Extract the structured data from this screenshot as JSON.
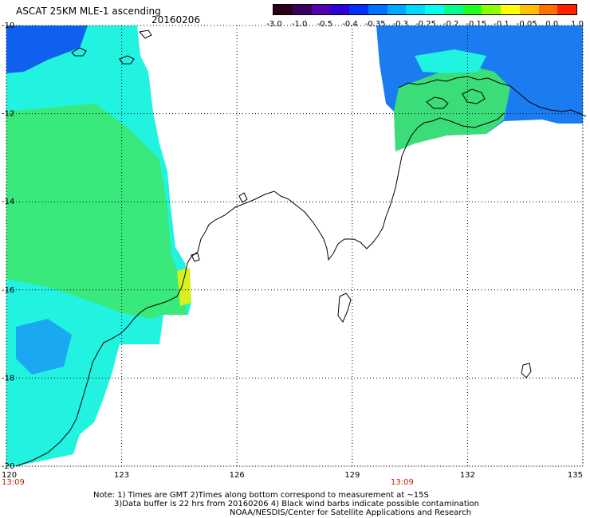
{
  "header": {
    "title": "ASCAT 25KM MLE-1 ascending",
    "date": "20160206"
  },
  "colorbar": {
    "colors": [
      "#2a0018",
      "#3a0060",
      "#5200b0",
      "#3000d8",
      "#0030ff",
      "#0070ff",
      "#00a8ff",
      "#00d8ff",
      "#00ffee",
      "#00ff90",
      "#20ff20",
      "#90ff00",
      "#ffff00",
      "#ffc000",
      "#ff7000",
      "#ff2000"
    ],
    "labels": [
      "-3.0",
      "-1.0",
      "-0.5",
      "-0.4",
      "-0.35",
      "-0.3",
      "-0.25",
      "-0.2",
      "-0.15",
      "-0.1",
      "-0.05",
      "0.0",
      "1.0"
    ]
  },
  "map": {
    "lon_ticks": [
      "120",
      "123",
      "126",
      "129",
      "132",
      "135"
    ],
    "lat_ticks": [
      "-10",
      "-12",
      "-14",
      "-16",
      "-18",
      "-20"
    ],
    "time_left": "13:09",
    "time_mid": "13:09"
  },
  "footer": {
    "line1": "Note: 1) Times are GMT 2)Times along bottom correspond to measurement at ~15S",
    "line2": "3)Data buffer is 22 hrs from 20160206 4) Black wind barbs indicate possible contamination",
    "line3": "NOAA/NESDIS/Center for Satellite Applications and Research"
  }
}
